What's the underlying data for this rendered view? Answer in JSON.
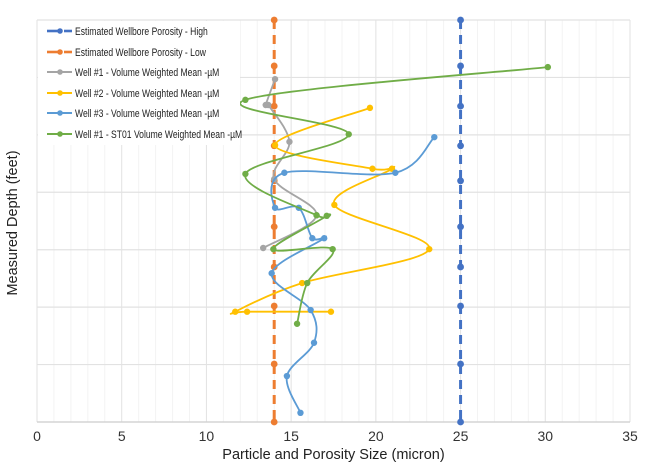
{
  "chart_data": {
    "type": "line",
    "title": "",
    "xlabel": "Particle and Porosity Size (micron)",
    "ylabel": "Measured Depth (feet)",
    "xlim": [
      0,
      35
    ],
    "xticks": [
      0,
      5,
      10,
      15,
      20,
      25,
      30,
      35
    ],
    "ylim": [
      0,
      7
    ],
    "y_inverted": true,
    "y_gridlines": [
      0,
      1,
      2,
      3,
      4,
      5,
      6,
      7
    ],
    "y_tick_labels_shown": false,
    "grid": true,
    "legend_position": "top-left",
    "series": [
      {
        "name": "Estimated Wellbore Porosity - High",
        "color": "#4472C4",
        "dashed": true,
        "smooth": false,
        "points": [
          [
            25,
            0
          ],
          [
            25,
            0.8
          ],
          [
            25,
            1.5
          ],
          [
            25,
            2.19
          ],
          [
            25,
            2.8
          ],
          [
            25,
            3.6
          ],
          [
            25,
            4.3
          ],
          [
            25,
            4.98
          ],
          [
            25,
            5.99
          ],
          [
            25,
            7
          ]
        ]
      },
      {
        "name": "Estimated Wellbore Porosity - Low",
        "color": "#ED7D31",
        "dashed": true,
        "smooth": false,
        "points": [
          [
            14,
            0
          ],
          [
            14,
            0.8
          ],
          [
            14,
            1.5
          ],
          [
            14,
            2.19
          ],
          [
            14,
            2.8
          ],
          [
            14,
            3.6
          ],
          [
            14,
            4.3
          ],
          [
            14,
            4.98
          ],
          [
            14,
            5.99
          ],
          [
            14,
            7
          ]
        ]
      },
      {
        "name": "Well #1 - Volume Weighted Mean -µM",
        "color": "#A5A5A5",
        "dashed": false,
        "smooth": true,
        "points": [
          [
            14.05,
            1.03
          ],
          [
            13.5,
            1.48
          ],
          [
            13.65,
            1.48
          ],
          [
            14.9,
            2.12
          ],
          [
            14.0,
            2.77
          ],
          [
            16.5,
            3.4
          ],
          [
            13.35,
            3.97
          ]
        ]
      },
      {
        "name": "Well #2 - Volume Weighted Mean -µM",
        "color": "#FFC000",
        "dashed": false,
        "smooth": true,
        "points": [
          [
            19.65,
            1.53
          ],
          [
            14.05,
            2.18
          ],
          [
            19.8,
            2.59
          ],
          [
            20.95,
            2.59
          ],
          [
            17.55,
            3.22
          ],
          [
            23.15,
            3.99
          ],
          [
            15.65,
            4.58
          ],
          [
            11.7,
            5.08
          ],
          [
            12.4,
            5.08
          ],
          [
            17.35,
            5.08
          ]
        ]
      },
      {
        "name": "Well #3 - Volume Weighted Mean -µM",
        "color": "#5B9BD5",
        "dashed": false,
        "smooth": true,
        "points": [
          [
            23.45,
            2.04
          ],
          [
            21.15,
            2.66
          ],
          [
            14.6,
            2.66
          ],
          [
            14.05,
            3.27
          ],
          [
            15.45,
            3.27
          ],
          [
            16.25,
            3.8
          ],
          [
            16.95,
            3.8
          ],
          [
            13.85,
            4.41
          ],
          [
            16.15,
            5.05
          ],
          [
            16.35,
            5.62
          ],
          [
            14.75,
            6.2
          ],
          [
            15.55,
            6.84
          ]
        ]
      },
      {
        "name": "Well #1 - ST01 Volume Weighted Mean -µM",
        "color": "#70AD47",
        "dashed": false,
        "smooth": true,
        "points": [
          [
            30.15,
            0.82
          ],
          [
            12.3,
            1.39
          ],
          [
            18.4,
            1.99
          ],
          [
            12.3,
            2.68
          ],
          [
            16.5,
            3.4
          ],
          [
            17.1,
            3.41
          ],
          [
            13.95,
            3.99
          ],
          [
            17.45,
            3.99
          ],
          [
            15.95,
            4.58
          ],
          [
            15.35,
            5.29
          ]
        ]
      }
    ]
  }
}
